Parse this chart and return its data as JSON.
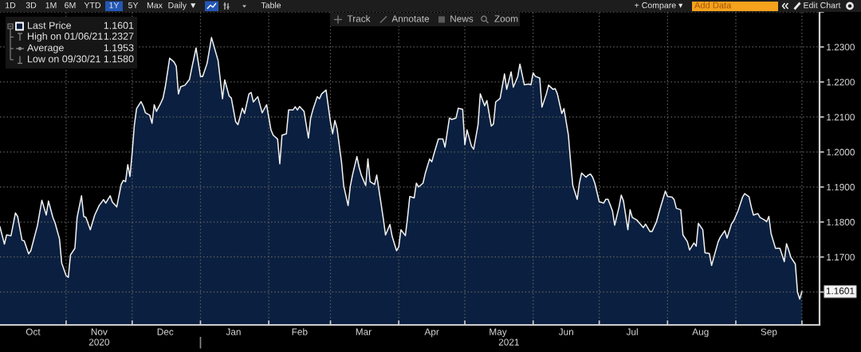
{
  "chart_data": {
    "type": "area",
    "x": [
      "2020-10-02",
      "2020-10-04",
      "2020-10-05",
      "2020-10-07",
      "2020-10-09",
      "2020-10-10",
      "2020-10-12",
      "2020-10-13",
      "2020-10-15",
      "2020-10-16",
      "2020-10-19",
      "2020-10-21",
      "2020-10-23",
      "2020-10-24",
      "2020-10-26",
      "2020-10-27",
      "2020-10-29",
      "2020-10-30",
      "2020-11-01",
      "2020-11-02",
      "2020-11-03",
      "2020-11-05",
      "2020-11-06",
      "2020-11-08",
      "2020-11-09",
      "2020-11-10",
      "2020-11-12",
      "2020-11-14",
      "2020-11-16",
      "2020-11-18",
      "2020-11-19",
      "2020-11-21",
      "2020-11-22",
      "2020-11-24",
      "2020-11-26",
      "2020-11-27",
      "2020-11-28",
      "2020-11-29",
      "2020-11-30",
      "2020-12-01",
      "2020-12-02",
      "2020-12-03",
      "2020-12-05",
      "2020-12-06",
      "2020-12-07",
      "2020-12-09",
      "2020-12-10",
      "2020-12-11",
      "2020-12-12",
      "2020-12-14",
      "2020-12-15",
      "2020-12-16",
      "2020-12-18",
      "2020-12-20",
      "2020-12-21",
      "2020-12-22",
      "2020-12-23",
      "2020-12-25",
      "2020-12-27",
      "2020-12-28",
      "2020-12-30",
      "2021-01-01",
      "2021-01-02",
      "2021-01-04",
      "2021-01-06",
      "2021-01-09",
      "2021-01-11",
      "2021-01-12",
      "2021-01-14",
      "2021-01-15",
      "2021-01-17",
      "2021-01-18",
      "2021-01-20",
      "2021-01-21",
      "2021-01-23",
      "2021-01-24",
      "2021-01-25",
      "2021-01-27",
      "2021-01-29",
      "2021-01-31",
      "2021-02-02",
      "2021-02-03",
      "2021-02-05",
      "2021-02-06",
      "2021-02-07",
      "2021-02-09",
      "2021-02-10",
      "2021-02-12",
      "2021-02-13",
      "2021-02-14",
      "2021-02-15",
      "2021-02-17",
      "2021-02-19",
      "2021-02-20",
      "2021-02-21",
      "2021-02-23",
      "2021-02-24",
      "2021-02-25",
      "2021-02-27",
      "2021-03-01",
      "2021-03-02",
      "2021-03-03",
      "2021-03-04",
      "2021-03-06",
      "2021-03-07",
      "2021-03-09",
      "2021-03-10",
      "2021-03-11",
      "2021-03-13",
      "2021-03-14",
      "2021-03-15",
      "2021-03-17",
      "2021-03-18",
      "2021-03-19",
      "2021-03-21",
      "2021-03-22",
      "2021-03-24",
      "2021-03-25",
      "2021-03-26",
      "2021-03-28",
      "2021-03-29",
      "2021-03-31",
      "2021-04-01",
      "2021-04-02",
      "2021-04-04",
      "2021-04-05",
      "2021-04-06",
      "2021-04-08",
      "2021-04-09",
      "2021-04-10",
      "2021-04-12",
      "2021-04-13",
      "2021-04-15",
      "2021-04-16",
      "2021-04-17",
      "2021-04-19",
      "2021-04-21",
      "2021-04-22",
      "2021-04-24",
      "2021-04-25",
      "2021-04-27",
      "2021-04-28",
      "2021-04-30",
      "2021-05-01",
      "2021-05-02",
      "2021-05-04",
      "2021-05-05",
      "2021-05-07",
      "2021-05-08",
      "2021-05-10",
      "2021-05-11",
      "2021-05-13",
      "2021-05-14",
      "2021-05-15",
      "2021-05-17",
      "2021-05-19",
      "2021-05-20",
      "2021-05-22",
      "2021-05-23",
      "2021-05-25",
      "2021-05-26",
      "2021-05-28",
      "2021-05-30",
      "2021-05-31",
      "2021-06-01",
      "2021-06-02",
      "2021-06-04",
      "2021-06-05",
      "2021-06-07",
      "2021-06-08",
      "2021-06-10",
      "2021-06-11",
      "2021-06-12",
      "2021-06-14",
      "2021-06-15",
      "2021-06-17",
      "2021-06-18",
      "2021-06-19",
      "2021-06-21",
      "2021-06-22",
      "2021-06-23",
      "2021-06-25",
      "2021-06-26",
      "2021-06-27",
      "2021-06-28",
      "2021-06-29",
      "2021-07-01",
      "2021-07-03",
      "2021-07-04",
      "2021-07-05",
      "2021-07-07",
      "2021-07-08",
      "2021-07-10",
      "2021-07-11",
      "2021-07-12",
      "2021-07-14",
      "2021-07-15",
      "2021-07-16",
      "2021-07-18",
      "2021-07-19",
      "2021-07-21",
      "2021-07-22",
      "2021-07-24",
      "2021-07-25",
      "2021-07-27",
      "2021-07-28",
      "2021-07-29",
      "2021-07-31",
      "2021-08-01",
      "2021-08-03",
      "2021-08-04",
      "2021-08-05",
      "2021-08-07",
      "2021-08-08",
      "2021-08-10",
      "2021-08-11",
      "2021-08-13",
      "2021-08-14",
      "2021-08-15",
      "2021-08-17",
      "2021-08-18",
      "2021-08-20",
      "2021-08-21",
      "2021-08-22",
      "2021-08-24",
      "2021-08-25",
      "2021-08-27",
      "2021-08-28",
      "2021-08-30",
      "2021-08-31",
      "2021-09-02",
      "2021-09-04",
      "2021-09-05",
      "2021-09-07",
      "2021-09-08",
      "2021-09-09",
      "2021-09-11",
      "2021-09-12",
      "2021-09-14",
      "2021-09-15",
      "2021-09-16",
      "2021-09-17",
      "2021-09-19",
      "2021-09-21",
      "2021-09-23",
      "2021-09-24",
      "2021-09-25",
      "2021-09-26",
      "2021-09-28",
      "2021-09-29",
      "2021-09-30",
      "2021-10-01"
    ],
    "series": [
      {
        "name": "Last Price",
        "color": "#0b2040",
        "values": [
          1.1786,
          1.1737,
          1.1763,
          1.1761,
          1.1826,
          1.1816,
          1.1748,
          1.1746,
          1.1709,
          1.1718,
          1.179,
          1.1862,
          1.182,
          1.186,
          1.1813,
          1.1797,
          1.1752,
          1.1683,
          1.1647,
          1.1642,
          1.1706,
          1.1725,
          1.1813,
          1.1875,
          1.1816,
          1.1813,
          1.1778,
          1.182,
          1.1847,
          1.1864,
          1.1854,
          1.1875,
          1.1857,
          1.1843,
          1.1907,
          1.1919,
          1.1915,
          1.1964,
          1.193,
          1.1999,
          1.2078,
          1.2124,
          1.2144,
          1.2131,
          1.2112,
          1.2105,
          1.2082,
          1.2135,
          1.2116,
          1.214,
          1.2154,
          1.2185,
          1.2268,
          1.2257,
          1.2245,
          1.2166,
          1.2186,
          1.2191,
          1.2207,
          1.2238,
          1.2297,
          1.2216,
          1.2216,
          1.2253,
          1.2327,
          1.2261,
          1.2152,
          1.2206,
          1.216,
          1.2154,
          1.2086,
          1.2078,
          1.2125,
          1.211,
          1.2166,
          1.217,
          1.2143,
          1.2158,
          1.2112,
          1.2135,
          1.2063,
          1.2048,
          1.2037,
          1.1966,
          1.2048,
          1.2052,
          1.212,
          1.212,
          1.2129,
          1.212,
          1.213,
          1.2116,
          1.204,
          1.2097,
          1.212,
          1.2158,
          1.2152,
          1.2166,
          1.2177,
          1.2086,
          1.2052,
          1.209,
          1.2067,
          1.1972,
          1.1904,
          1.1847,
          1.1902,
          1.1934,
          1.1987,
          1.1957,
          1.1934,
          1.1904,
          1.198,
          1.1915,
          1.1907,
          1.1934,
          1.1851,
          1.1809,
          1.1763,
          1.1793,
          1.1759,
          1.1718,
          1.1729,
          1.1778,
          1.1761,
          1.1813,
          1.1873,
          1.1869,
          1.1911,
          1.19,
          1.1911,
          1.1938,
          1.198,
          1.1972,
          1.1995,
          1.2037,
          1.2037,
          1.2014,
          1.2097,
          1.2093,
          1.2097,
          1.2125,
          1.2122,
          1.2021,
          1.2063,
          1.2017,
          1.2008,
          1.2078,
          1.2166,
          1.2132,
          1.2147,
          1.2074,
          1.208,
          1.2143,
          1.2153,
          1.2223,
          1.2179,
          1.2229,
          1.2185,
          1.2215,
          1.2251,
          1.2192,
          1.2194,
          1.2192,
          1.2226,
          1.2216,
          1.2211,
          1.2128,
          1.2166,
          1.2191,
          1.2179,
          1.2181,
          1.2166,
          1.211,
          1.2124,
          1.2048,
          1.1972,
          1.1904,
          1.1865,
          1.1911,
          1.194,
          1.1928,
          1.1934,
          1.1937,
          1.1928,
          1.1911,
          1.1858,
          1.1854,
          1.1865,
          1.1865,
          1.1832,
          1.1791,
          1.1843,
          1.1877,
          1.186,
          1.1778,
          1.1835,
          1.1813,
          1.1806,
          1.1799,
          1.1784,
          1.1794,
          1.1773,
          1.1773,
          1.1801,
          1.1824,
          1.1846,
          1.1888,
          1.1873,
          1.1871,
          1.1864,
          1.1839,
          1.1835,
          1.1763,
          1.1744,
          1.172,
          1.174,
          1.1731,
          1.1796,
          1.1778,
          1.1712,
          1.171,
          1.1676,
          1.1699,
          1.1744,
          1.1757,
          1.1775,
          1.1754,
          1.1794,
          1.1803,
          1.1832,
          1.187,
          1.1881,
          1.1872,
          1.1843,
          1.182,
          1.1824,
          1.1813,
          1.1806,
          1.1801,
          1.1816,
          1.1767,
          1.1725,
          1.1725,
          1.1687,
          1.1738,
          1.172,
          1.1699,
          1.168,
          1.16,
          1.158,
          1.1601
        ]
      }
    ],
    "xlim": [
      "2020-10-02",
      "2021-10-09"
    ],
    "xticks": [
      {
        "value": "2020-10-17",
        "label": "Oct"
      },
      {
        "value": "2020-11-01",
        "label": null
      },
      {
        "value": "2020-11-16",
        "label": "Nov"
      },
      {
        "value": "2020-12-01",
        "label": null
      },
      {
        "value": "2020-12-16",
        "label": "Dec"
      },
      {
        "value": "2021-01-01",
        "label": null
      },
      {
        "value": "2021-01-16",
        "label": "Jan"
      },
      {
        "value": "2021-02-01",
        "label": null
      },
      {
        "value": "2021-02-15",
        "label": "Feb"
      },
      {
        "value": "2021-03-01",
        "label": null
      },
      {
        "value": "2021-03-16",
        "label": "Mar"
      },
      {
        "value": "2021-04-01",
        "label": null
      },
      {
        "value": "2021-04-16",
        "label": "Apr"
      },
      {
        "value": "2021-05-01",
        "label": null
      },
      {
        "value": "2021-05-16",
        "label": "May"
      },
      {
        "value": "2021-06-01",
        "label": null
      },
      {
        "value": "2021-06-16",
        "label": "Jun"
      },
      {
        "value": "2021-07-01",
        "label": null
      },
      {
        "value": "2021-07-16",
        "label": "Jul"
      },
      {
        "value": "2021-08-01",
        "label": null
      },
      {
        "value": "2021-08-16",
        "label": "Aug"
      },
      {
        "value": "2021-09-01",
        "label": null
      },
      {
        "value": "2021-09-16",
        "label": "Sep"
      },
      {
        "value": "2021-10-01",
        "label": null
      }
    ],
    "x2lim": [
      "2020-10-02",
      "2021-10-09"
    ],
    "x2ticks": [
      {
        "value": "2020-11-16",
        "label": "2020"
      },
      {
        "value": "2021-01-01",
        "label": null
      },
      {
        "value": "2021-05-21",
        "label": "2021"
      }
    ],
    "ylim": [
      1.1506,
      1.24
    ],
    "yticks": [
      {
        "value": 1.16,
        "label": null
      },
      {
        "value": 1.17,
        "label": "1.1700"
      },
      {
        "value": 1.18,
        "label": "1.1800"
      },
      {
        "value": 1.19,
        "label": "1.1900"
      },
      {
        "value": 1.2,
        "label": "1.2000"
      },
      {
        "value": 1.21,
        "label": "1.2100"
      },
      {
        "value": 1.22,
        "label": "1.2200"
      },
      {
        "value": 1.23,
        "label": "1.2300"
      },
      {
        "value": 1.24,
        "label": null
      }
    ],
    "grid": true,
    "legend": "top left",
    "annotations": [
      "1D",
      "3D",
      "1M",
      "6M",
      "YTD",
      "1Y",
      "5Y",
      "Max",
      "Daily ▼",
      "Table",
      "Track",
      "Annotate",
      "News",
      "Zoom",
      "+ Compare ▾",
      "Add Data",
      "Edit Chart",
      "1.1601",
      "High on 01/06/21",
      "1.2327",
      "Average",
      "1.1953",
      "Low on 09/30/21",
      "1.1580",
      {
        "text": "1.1601",
        "x": "2021-10-01",
        "y": 1.1601
      }
    ]
  }
}
